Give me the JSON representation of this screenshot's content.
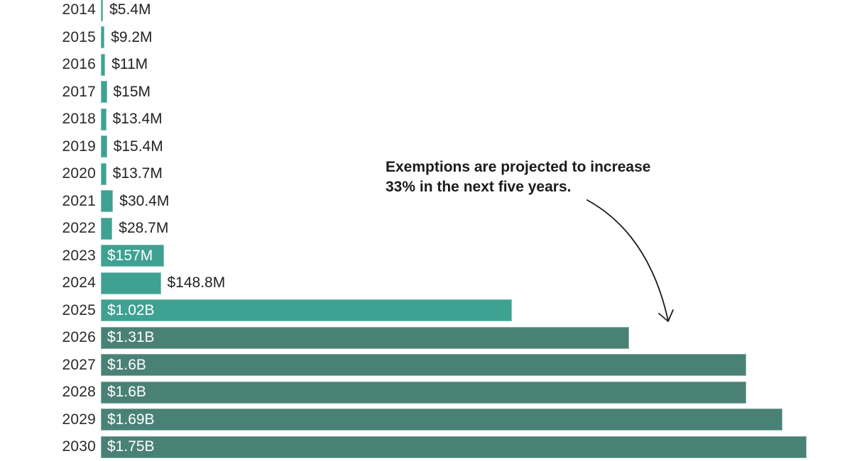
{
  "chart_data": {
    "type": "bar",
    "orientation": "horizontal",
    "title": "",
    "xlabel": "",
    "ylabel": "",
    "unit": "USD",
    "xlim_millions": [
      0,
      1862
    ],
    "grid": false,
    "legend": false,
    "categories": [
      "2014",
      "2015",
      "2016",
      "2017",
      "2018",
      "2019",
      "2020",
      "2021",
      "2022",
      "2023",
      "2024",
      "2025",
      "2026",
      "2027",
      "2028",
      "2029",
      "2030"
    ],
    "values_usd_millions": [
      5.4,
      9.2,
      11,
      15,
      13.4,
      15.4,
      13.7,
      30.4,
      28.7,
      157,
      148.8,
      1020,
      1310,
      1600,
      1600,
      1690,
      1750
    ],
    "rows": [
      {
        "year": "2014",
        "value_millions": 5.4,
        "label": "$5.4M",
        "label_position": "outside",
        "segment": "actual"
      },
      {
        "year": "2015",
        "value_millions": 9.2,
        "label": "$9.2M",
        "label_position": "outside",
        "segment": "actual"
      },
      {
        "year": "2016",
        "value_millions": 11,
        "label": "$11M",
        "label_position": "outside",
        "segment": "actual"
      },
      {
        "year": "2017",
        "value_millions": 15,
        "label": "$15M",
        "label_position": "outside",
        "segment": "actual"
      },
      {
        "year": "2018",
        "value_millions": 13.4,
        "label": "$13.4M",
        "label_position": "outside",
        "segment": "actual"
      },
      {
        "year": "2019",
        "value_millions": 15.4,
        "label": "$15.4M",
        "label_position": "outside",
        "segment": "actual"
      },
      {
        "year": "2020",
        "value_millions": 13.7,
        "label": "$13.7M",
        "label_position": "outside",
        "segment": "actual"
      },
      {
        "year": "2021",
        "value_millions": 30.4,
        "label": "$30.4M",
        "label_position": "outside",
        "segment": "actual"
      },
      {
        "year": "2022",
        "value_millions": 28.7,
        "label": "$28.7M",
        "label_position": "outside",
        "segment": "actual"
      },
      {
        "year": "2023",
        "value_millions": 157,
        "label": "$157M",
        "label_position": "inside",
        "segment": "actual"
      },
      {
        "year": "2024",
        "value_millions": 148.8,
        "label": "$148.8M",
        "label_position": "outside",
        "segment": "actual"
      },
      {
        "year": "2025",
        "value_millions": 1020,
        "label": "$1.02B",
        "label_position": "inside",
        "segment": "actual"
      },
      {
        "year": "2026",
        "value_millions": 1310,
        "label": "$1.31B",
        "label_position": "inside",
        "segment": "projected"
      },
      {
        "year": "2027",
        "value_millions": 1600,
        "label": "$1.6B",
        "label_position": "inside",
        "segment": "projected"
      },
      {
        "year": "2028",
        "value_millions": 1600,
        "label": "$1.6B",
        "label_position": "inside",
        "segment": "projected"
      },
      {
        "year": "2029",
        "value_millions": 1690,
        "label": "$1.69B",
        "label_position": "inside",
        "segment": "projected"
      },
      {
        "year": "2030",
        "value_millions": 1750,
        "label": "$1.75B",
        "label_position": "inside",
        "segment": "projected"
      }
    ],
    "annotation": {
      "line1": "Exemptions are projected to increase",
      "line2": "33% in the next five years.",
      "arrow_points_to": "2026 bar area"
    }
  },
  "colors": {
    "actual_bar": "#3FA192",
    "projected_bar": "#4A8176",
    "year_text": "#2a2a2a",
    "value_text_outside": "#222222",
    "value_text_inside": "#FFFFFF",
    "annotation_text": "#1b1b1b",
    "arrow": "#1a1a1a",
    "background": "#FFFFFF"
  }
}
